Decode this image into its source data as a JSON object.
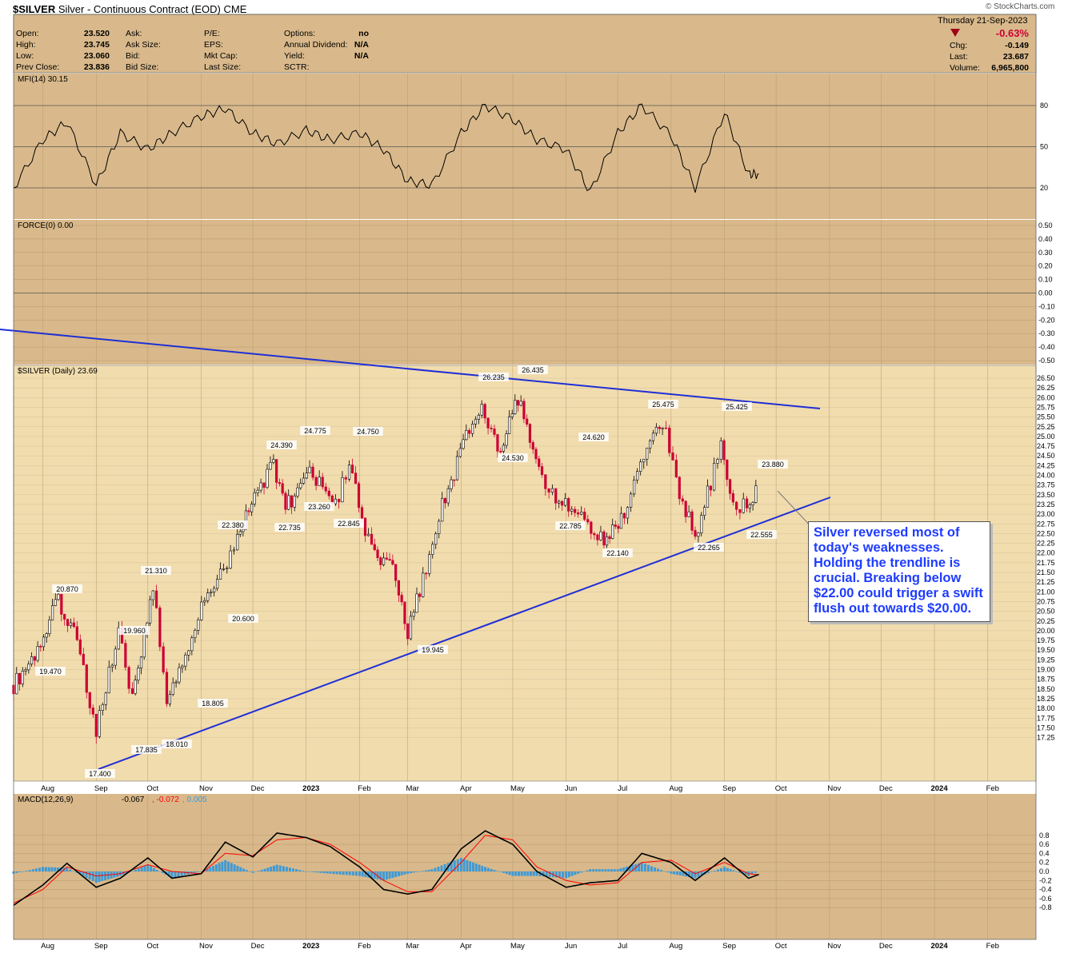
{
  "header": {
    "symbol": "$SILVER",
    "description": "Silver - Continuous Contract (EOD)",
    "exchange": "CME",
    "source": "© StockCharts.com",
    "date_line": "Thursday  21-Sep-2023",
    "pct_change": "-0.63%",
    "fields": [
      {
        "label": "Open:",
        "value": "23.520"
      },
      {
        "label": "High:",
        "value": "23.745"
      },
      {
        "label": "Low:",
        "value": "23.060"
      },
      {
        "label": "Prev Close:",
        "value": "23.836"
      }
    ],
    "fields2": [
      {
        "label": "Ask:",
        "value": ""
      },
      {
        "label": "Ask Size:",
        "value": ""
      },
      {
        "label": "Bid:",
        "value": ""
      },
      {
        "label": "Bid Size:",
        "value": ""
      }
    ],
    "fields3": [
      {
        "label": "P/E:",
        "value": ""
      },
      {
        "label": "EPS:",
        "value": ""
      },
      {
        "label": "Mkt Cap:",
        "value": ""
      },
      {
        "label": "Last Size:",
        "value": ""
      }
    ],
    "fields4": [
      {
        "label": "Options:",
        "value": "no"
      },
      {
        "label": "Annual Dividend:",
        "value": "N/A"
      },
      {
        "label": "Yield:",
        "value": "N/A"
      },
      {
        "label": "SCTR:",
        "value": ""
      }
    ],
    "fields5": [
      {
        "label": "Chg:",
        "value": "-0.149"
      },
      {
        "label": "Last:",
        "value": "23.687"
      },
      {
        "label": "Volume:",
        "value": "6,965,800"
      }
    ]
  },
  "annotation": "Silver reversed most of today's weaknesses. Holding the trendline is crucial. Breaking below $22.00 could trigger a swift flush out towards $20.00.",
  "colors": {
    "panel_bg": "#d9b98b",
    "price_bg": "#f1dcae",
    "up": "#000000",
    "down": "#cc0033",
    "trend": "#1f2fd6",
    "macd_hist": "#3f9ad6",
    "signal": "#ff0000"
  },
  "chart_data": [
    {
      "type": "line",
      "title": "MFI(14) 30.15",
      "x": [
        "2022-07-15",
        "2022-08-01",
        "2022-08-15",
        "2022-09-01",
        "2022-09-15",
        "2022-10-01",
        "2022-10-15",
        "2022-11-01",
        "2022-11-15",
        "2022-12-01",
        "2022-12-15",
        "2023-01-01",
        "2023-01-15",
        "2023-02-01",
        "2023-02-15",
        "2023-03-01",
        "2023-03-15",
        "2023-04-01",
        "2023-04-15",
        "2023-05-01",
        "2023-05-15",
        "2023-06-01",
        "2023-06-15",
        "2023-07-01",
        "2023-07-15",
        "2023-08-01",
        "2023-08-15",
        "2023-09-01",
        "2023-09-15",
        "2023-09-21"
      ],
      "series": [
        {
          "name": "MFI(14)",
          "values": [
            20,
            55,
            68,
            22,
            60,
            48,
            60,
            72,
            78,
            60,
            52,
            62,
            55,
            60,
            48,
            25,
            22,
            60,
            80,
            70,
            55,
            48,
            17,
            60,
            80,
            58,
            20,
            75,
            30,
            30
          ]
        }
      ],
      "ylim": [
        0,
        100
      ],
      "yticks": [
        20,
        50,
        80
      ]
    },
    {
      "type": "line",
      "title": "FORCE(0) 0.00",
      "yticks": [
        "0.50",
        "0.40",
        "0.30",
        "0.20",
        "0.10",
        "0.00",
        "-0.10",
        "-0.20",
        "-0.30",
        "-0.40",
        "-0.50"
      ],
      "ylim": [
        -0.5,
        0.5
      ],
      "series": [
        {
          "name": "FORCE(0)",
          "values": [
            0
          ]
        }
      ]
    },
    {
      "type": "line",
      "title": "$SILVER (Daily) 23.69",
      "x": [
        "2022-07-15",
        "2022-07-29",
        "2022-08-10",
        "2022-08-19",
        "2022-09-01",
        "2022-09-14",
        "2022-09-22",
        "2022-10-04",
        "2022-10-12",
        "2022-10-21",
        "2022-11-03",
        "2022-11-14",
        "2022-11-22",
        "2022-12-02",
        "2022-12-13",
        "2022-12-20",
        "2023-01-03",
        "2023-01-18",
        "2023-01-26",
        "2023-02-08",
        "2023-02-22",
        "2023-03-01",
        "2023-03-08",
        "2023-03-21",
        "2023-04-04",
        "2023-04-13",
        "2023-04-24",
        "2023-05-04",
        "2023-05-18",
        "2023-05-26",
        "2023-06-08",
        "2023-06-23",
        "2023-07-03",
        "2023-07-18",
        "2023-07-27",
        "2023-08-04",
        "2023-08-15",
        "2023-08-24",
        "2023-08-30",
        "2023-09-06",
        "2023-09-14",
        "2023-09-21"
      ],
      "series": [
        {
          "name": "Close",
          "values": [
            18.6,
            19.5,
            20.8,
            20.0,
            17.5,
            19.9,
            18.2,
            21.2,
            18.1,
            19.2,
            20.8,
            21.5,
            22.3,
            23.5,
            24.3,
            23.2,
            24.0,
            23.3,
            24.2,
            22.0,
            21.5,
            20.0,
            21.0,
            23.2,
            25.0,
            25.8,
            24.6,
            26.0,
            24.0,
            23.5,
            23.0,
            22.3,
            22.8,
            24.9,
            25.4,
            23.8,
            22.4,
            23.8,
            24.9,
            23.3,
            23.2,
            23.69
          ]
        }
      ],
      "labels": [
        "26.235",
        "26.435",
        "25.475",
        "25.425",
        "24.775",
        "24.750",
        "24.390",
        "24.620",
        "24.530",
        "23.880",
        "23.260",
        "22.380",
        "22.735",
        "22.845",
        "22.785",
        "22.140",
        "22.265",
        "22.555",
        "21.310",
        "20.870",
        "20.600",
        "19.960",
        "19.945",
        "19.470",
        "18.805",
        "18.010",
        "17.835",
        "17.400"
      ],
      "ylim": [
        17.25,
        26.5
      ],
      "yticks": [
        "26.50",
        "26.25",
        "26.00",
        "25.75",
        "25.50",
        "25.25",
        "25.00",
        "24.75",
        "24.50",
        "24.25",
        "24.00",
        "23.75",
        "23.50",
        "23.25",
        "23.00",
        "22.75",
        "22.50",
        "22.25",
        "22.00",
        "21.75",
        "21.50",
        "21.25",
        "21.00",
        "20.75",
        "20.50",
        "20.25",
        "20.00",
        "19.75",
        "19.50",
        "19.25",
        "19.00",
        "18.75",
        "18.50",
        "18.25",
        "18.00",
        "17.75",
        "17.50",
        "17.25"
      ],
      "xticks": [
        "Aug",
        "Sep",
        "Oct",
        "Nov",
        "Dec",
        "2023",
        "Feb",
        "Mar",
        "Apr",
        "May",
        "Jun",
        "Jul",
        "Aug",
        "Sep",
        "Oct",
        "Nov",
        "Dec",
        "2024",
        "Feb"
      ]
    },
    {
      "type": "line",
      "title": "MACD(12,26,9)",
      "legend": [
        {
          "name": "MACD",
          "value": "-0.067",
          "color": "#000000"
        },
        {
          "name": "Signal",
          "value": "-0.072",
          "color": "#ff0000"
        },
        {
          "name": "Hist",
          "value": "0.005",
          "color": "#3f9ad6"
        }
      ],
      "x": [
        "2022-07-15",
        "2022-08-01",
        "2022-08-15",
        "2022-09-01",
        "2022-09-15",
        "2022-10-01",
        "2022-10-15",
        "2022-11-01",
        "2022-11-15",
        "2022-12-01",
        "2022-12-15",
        "2023-01-01",
        "2023-01-15",
        "2023-02-01",
        "2023-02-15",
        "2023-03-01",
        "2023-03-15",
        "2023-04-01",
        "2023-04-15",
        "2023-05-01",
        "2023-05-15",
        "2023-06-01",
        "2023-06-15",
        "2023-07-01",
        "2023-07-15",
        "2023-08-01",
        "2023-08-15",
        "2023-09-01",
        "2023-09-15",
        "2023-09-21"
      ],
      "series": [
        {
          "name": "MACD",
          "values": [
            -0.75,
            -0.3,
            0.18,
            -0.35,
            -0.15,
            0.3,
            -0.15,
            -0.05,
            0.65,
            0.32,
            0.85,
            0.75,
            0.55,
            0.1,
            -0.4,
            -0.5,
            -0.4,
            0.5,
            0.9,
            0.6,
            0.0,
            -0.35,
            -0.25,
            -0.2,
            0.4,
            0.2,
            -0.2,
            0.3,
            -0.15,
            -0.067
          ]
        },
        {
          "name": "Signal",
          "values": [
            -0.7,
            -0.4,
            0.1,
            -0.1,
            -0.05,
            0.15,
            0.0,
            -0.05,
            0.4,
            0.35,
            0.7,
            0.75,
            0.6,
            0.2,
            -0.2,
            -0.45,
            -0.45,
            0.2,
            0.8,
            0.7,
            0.1,
            -0.2,
            -0.3,
            -0.25,
            0.2,
            0.25,
            -0.05,
            0.2,
            -0.05,
            -0.072
          ]
        }
      ],
      "ylim": [
        -0.8,
        0.8
      ],
      "yticks": [
        "0.8",
        "0.6",
        "0.4",
        "0.2",
        "0.0",
        "-0.2",
        "-0.4",
        "-0.6",
        "-0.8"
      ],
      "xticks": [
        "Aug",
        "Sep",
        "Oct",
        "Nov",
        "Dec",
        "2023",
        "Feb",
        "Mar",
        "Apr",
        "May",
        "Jun",
        "Jul",
        "Aug",
        "Sep",
        "Oct",
        "Nov",
        "Dec",
        "2024",
        "Feb"
      ]
    }
  ]
}
